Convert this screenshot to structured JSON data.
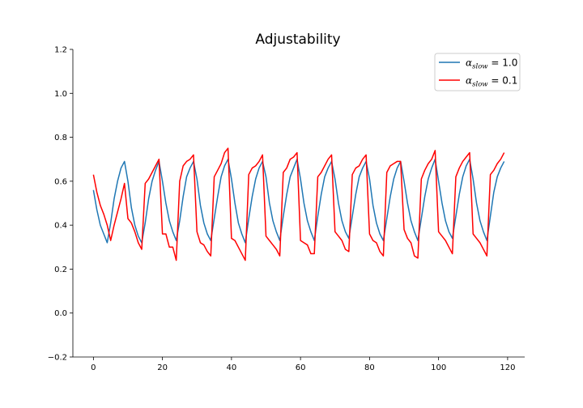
{
  "chart_data": {
    "type": "line",
    "title": "Adjustability",
    "xlabel": "",
    "ylabel": "",
    "xlim": [
      -5.95,
      124.95
    ],
    "ylim": [
      -0.2,
      1.2
    ],
    "xticks": [
      0,
      20,
      40,
      60,
      80,
      100,
      120
    ],
    "yticks": [
      -0.2,
      0.0,
      0.2,
      0.4,
      0.6,
      0.8,
      1.0,
      1.2
    ],
    "xtick_labels": [
      "0",
      "20",
      "40",
      "60",
      "80",
      "100",
      "120"
    ],
    "ytick_labels": [
      "−0.2",
      "0.0",
      "0.2",
      "0.4",
      "0.6",
      "0.8",
      "1.0",
      "1.2"
    ],
    "grid": false,
    "legend_position": "top-right",
    "series": [
      {
        "name": "α_slow = 1.0",
        "legend_main": "α",
        "legend_sub": "slow",
        "legend_rest": " = 1.0",
        "color": "#1f77b4",
        "x": [
          0,
          1,
          2,
          3,
          4,
          5,
          6,
          7,
          8,
          9,
          10,
          11,
          12,
          13,
          14,
          15,
          16,
          17,
          18,
          19,
          20,
          21,
          22,
          23,
          24,
          25,
          26,
          27,
          28,
          29,
          30,
          31,
          32,
          33,
          34,
          35,
          36,
          37,
          38,
          39,
          40,
          41,
          42,
          43,
          44,
          45,
          46,
          47,
          48,
          49,
          50,
          51,
          52,
          53,
          54,
          55,
          56,
          57,
          58,
          59,
          60,
          61,
          62,
          63,
          64,
          65,
          66,
          67,
          68,
          69,
          70,
          71,
          72,
          73,
          74,
          75,
          76,
          77,
          78,
          79,
          80,
          81,
          82,
          83,
          84,
          85,
          86,
          87,
          88,
          89,
          90,
          91,
          92,
          93,
          94,
          95,
          96,
          97,
          98,
          99,
          100,
          101,
          102,
          103,
          104,
          105,
          106,
          107,
          108,
          109,
          110,
          111,
          112,
          113,
          114,
          115,
          116,
          117,
          118,
          119
        ],
        "values": [
          0.56,
          0.47,
          0.4,
          0.36,
          0.32,
          0.41,
          0.52,
          0.6,
          0.66,
          0.69,
          0.6,
          0.48,
          0.4,
          0.35,
          0.32,
          0.41,
          0.52,
          0.6,
          0.65,
          0.69,
          0.6,
          0.5,
          0.42,
          0.37,
          0.33,
          0.42,
          0.53,
          0.62,
          0.66,
          0.69,
          0.61,
          0.49,
          0.41,
          0.36,
          0.33,
          0.43,
          0.53,
          0.62,
          0.67,
          0.7,
          0.61,
          0.5,
          0.41,
          0.36,
          0.32,
          0.43,
          0.53,
          0.61,
          0.66,
          0.69,
          0.62,
          0.5,
          0.42,
          0.37,
          0.33,
          0.44,
          0.54,
          0.62,
          0.66,
          0.7,
          0.61,
          0.5,
          0.42,
          0.37,
          0.33,
          0.44,
          0.54,
          0.62,
          0.66,
          0.69,
          0.61,
          0.5,
          0.42,
          0.37,
          0.34,
          0.44,
          0.54,
          0.62,
          0.66,
          0.69,
          0.61,
          0.49,
          0.41,
          0.36,
          0.33,
          0.43,
          0.53,
          0.61,
          0.66,
          0.69,
          0.6,
          0.5,
          0.42,
          0.37,
          0.33,
          0.43,
          0.53,
          0.61,
          0.66,
          0.7,
          0.6,
          0.5,
          0.42,
          0.37,
          0.34,
          0.44,
          0.54,
          0.62,
          0.67,
          0.7,
          0.61,
          0.5,
          0.42,
          0.37,
          0.33,
          0.44,
          0.55,
          0.62,
          0.66,
          0.69
        ]
      },
      {
        "name": "α_slow = 0.1",
        "legend_main": "α",
        "legend_sub": "slow",
        "legend_rest": " = 0.1",
        "color": "#ff0000",
        "x": [
          0,
          1,
          2,
          3,
          4,
          5,
          6,
          7,
          8,
          9,
          10,
          11,
          12,
          13,
          14,
          15,
          16,
          17,
          18,
          19,
          20,
          21,
          22,
          23,
          24,
          25,
          26,
          27,
          28,
          29,
          30,
          31,
          32,
          33,
          34,
          35,
          36,
          37,
          38,
          39,
          40,
          41,
          42,
          43,
          44,
          45,
          46,
          47,
          48,
          49,
          50,
          51,
          52,
          53,
          54,
          55,
          56,
          57,
          58,
          59,
          60,
          61,
          62,
          63,
          64,
          65,
          66,
          67,
          68,
          69,
          70,
          71,
          72,
          73,
          74,
          75,
          76,
          77,
          78,
          79,
          80,
          81,
          82,
          83,
          84,
          85,
          86,
          87,
          88,
          89,
          90,
          91,
          92,
          93,
          94,
          95,
          96,
          97,
          98,
          99,
          100,
          101,
          102,
          103,
          104,
          105,
          106,
          107,
          108,
          109,
          110,
          111,
          112,
          113,
          114,
          115,
          116,
          117,
          118,
          119
        ],
        "values": [
          0.63,
          0.55,
          0.49,
          0.45,
          0.4,
          0.33,
          0.4,
          0.46,
          0.52,
          0.59,
          0.43,
          0.41,
          0.37,
          0.32,
          0.29,
          0.59,
          0.61,
          0.64,
          0.67,
          0.7,
          0.36,
          0.36,
          0.3,
          0.3,
          0.24,
          0.6,
          0.67,
          0.69,
          0.7,
          0.72,
          0.37,
          0.32,
          0.31,
          0.28,
          0.26,
          0.62,
          0.65,
          0.68,
          0.73,
          0.75,
          0.34,
          0.33,
          0.3,
          0.27,
          0.24,
          0.63,
          0.66,
          0.67,
          0.69,
          0.72,
          0.35,
          0.33,
          0.31,
          0.29,
          0.26,
          0.64,
          0.66,
          0.7,
          0.71,
          0.73,
          0.33,
          0.32,
          0.31,
          0.27,
          0.27,
          0.62,
          0.64,
          0.67,
          0.7,
          0.72,
          0.37,
          0.35,
          0.33,
          0.29,
          0.28,
          0.63,
          0.66,
          0.67,
          0.7,
          0.72,
          0.36,
          0.33,
          0.32,
          0.28,
          0.26,
          0.64,
          0.67,
          0.68,
          0.69,
          0.69,
          0.38,
          0.34,
          0.32,
          0.26,
          0.25,
          0.61,
          0.65,
          0.68,
          0.7,
          0.74,
          0.37,
          0.35,
          0.33,
          0.3,
          0.27,
          0.62,
          0.66,
          0.69,
          0.71,
          0.73,
          0.36,
          0.34,
          0.32,
          0.29,
          0.26,
          0.63,
          0.65,
          0.68,
          0.7,
          0.73
        ]
      }
    ]
  }
}
